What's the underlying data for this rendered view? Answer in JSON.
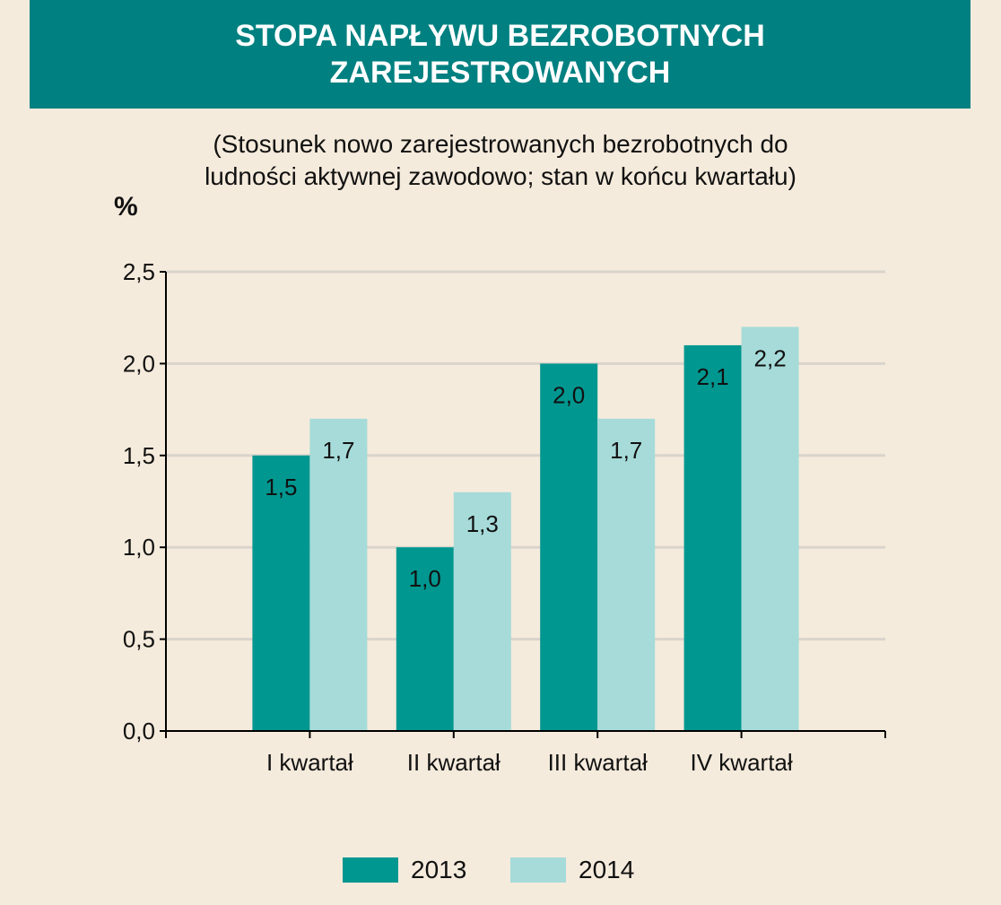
{
  "title_line1": "STOPA NAPŁYWU BEZROBOTNYCH",
  "title_line2": "ZAREJESTROWANYCH",
  "subtitle_line1": "(Stosunek nowo zarejestrowanych bezrobotnych do",
  "subtitle_line2": "ludności aktywnej zawodowo; stan w końcu kwartału)",
  "unit_label": "%",
  "colors": {
    "accent": "#008080",
    "series_2013": "#009790",
    "series_2014": "#a6dbd9",
    "background": "#f5ebdc",
    "grid": "#d9d4cc"
  },
  "chart_data": {
    "type": "bar",
    "categories": [
      "I kwartał",
      "II kwartał",
      "III kwartał",
      "IV kwartał"
    ],
    "series": [
      {
        "name": "2013",
        "values": [
          1.5,
          1.0,
          2.0,
          2.1
        ],
        "labels": [
          "1,5",
          "1,0",
          "2,0",
          "2,1"
        ]
      },
      {
        "name": "2014",
        "values": [
          1.7,
          1.3,
          1.7,
          2.2
        ],
        "labels": [
          "1,7",
          "1,3",
          "1,7",
          "2,2"
        ]
      }
    ],
    "title": "STOPA NAPŁYWU BEZROBOTNYCH ZAREJESTROWANYCH",
    "ylabel": "%",
    "ylim": [
      0,
      2.5
    ],
    "yticks": [
      0,
      0.5,
      1.0,
      1.5,
      2.0,
      2.5
    ],
    "ytick_labels": [
      "0,0",
      "0,5",
      "1,0",
      "1,5",
      "2,0",
      "2,5"
    ],
    "grid": true,
    "legend": "bottom"
  }
}
